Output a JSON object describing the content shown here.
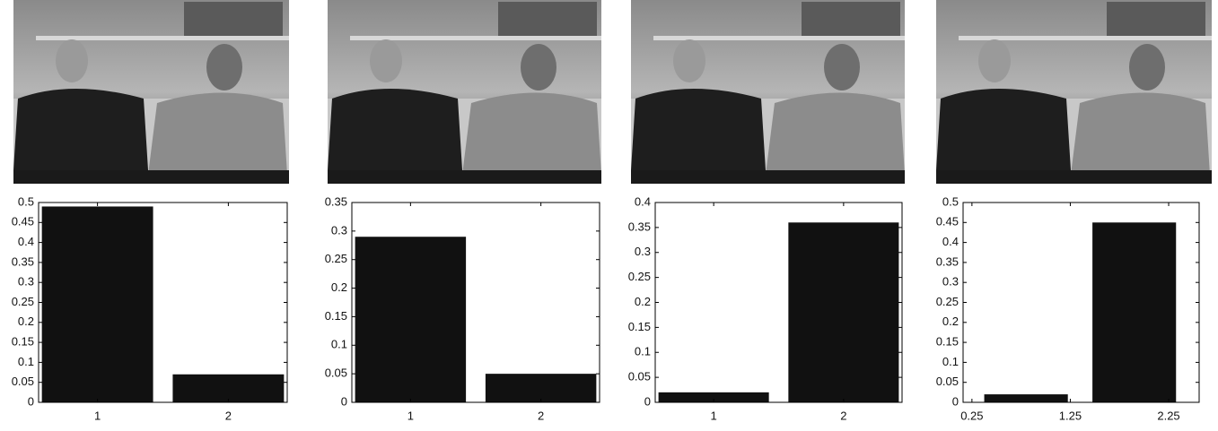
{
  "chart_data": [
    {
      "type": "bar",
      "x": [
        1,
        2
      ],
      "values": [
        0.49,
        0.07
      ],
      "color": "#111111",
      "xlim": [
        0.55,
        2.45
      ],
      "xticks": [
        1,
        2
      ],
      "ylim": [
        0,
        0.5
      ],
      "yticks": [
        0,
        0.05,
        0.1,
        0.15,
        0.2,
        0.25,
        0.3,
        0.35,
        0.4,
        0.45,
        0.5
      ]
    },
    {
      "type": "bar",
      "x": [
        1,
        2
      ],
      "values": [
        0.29,
        0.05
      ],
      "color": "#111111",
      "xlim": [
        0.55,
        2.45
      ],
      "xticks": [
        1,
        2
      ],
      "ylim": [
        0,
        0.35
      ],
      "yticks": [
        0,
        0.05,
        0.1,
        0.15,
        0.2,
        0.25,
        0.3,
        0.35
      ]
    },
    {
      "type": "bar",
      "x": [
        1,
        2
      ],
      "values": [
        0.02,
        0.36
      ],
      "color": "#111111",
      "xlim": [
        0.55,
        2.45
      ],
      "xticks": [
        1,
        2
      ],
      "ylim": [
        0,
        0.4
      ],
      "yticks": [
        0,
        0.05,
        0.1,
        0.15,
        0.2,
        0.25,
        0.3,
        0.35,
        0.4
      ]
    },
    {
      "type": "bar",
      "x": [
        0.8,
        1.9
      ],
      "values": [
        0.02,
        0.45
      ],
      "color": "#111111",
      "xlim": [
        0.16,
        2.56
      ],
      "xticks": [
        0.25,
        1.25,
        2.25
      ],
      "ylim": [
        0,
        0.5
      ],
      "yticks": [
        0,
        0.05,
        0.1,
        0.15,
        0.2,
        0.25,
        0.3,
        0.35,
        0.4,
        0.45,
        0.5
      ]
    }
  ]
}
